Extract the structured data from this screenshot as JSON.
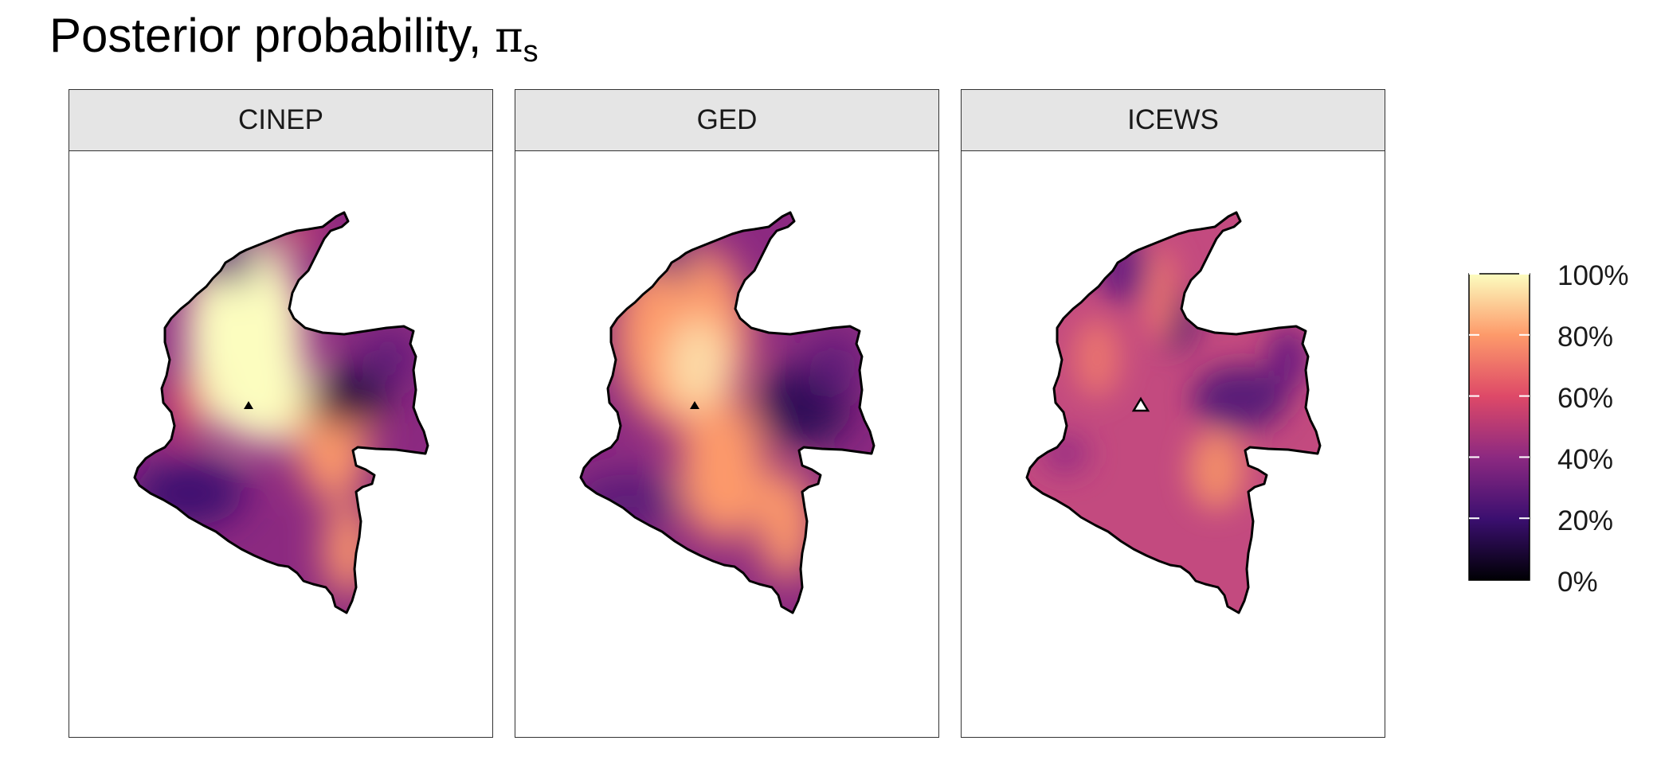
{
  "title": {
    "text": "Posterior probability, ",
    "symbol": "π",
    "subscript": "s"
  },
  "panels": [
    {
      "label": "CINEP",
      "marker": "black-triangle"
    },
    {
      "label": "GED",
      "marker": "black-triangle"
    },
    {
      "label": "ICEWS",
      "marker": "white-triangle"
    }
  ],
  "legend": {
    "ticks": [
      "100%",
      "80%",
      "60%",
      "40%",
      "20%",
      "0%"
    ],
    "colormap": [
      "#fcfdbf",
      "#fd9a6a",
      "#de4968",
      "#8c2981",
      "#3b0f70",
      "#000004"
    ]
  }
}
